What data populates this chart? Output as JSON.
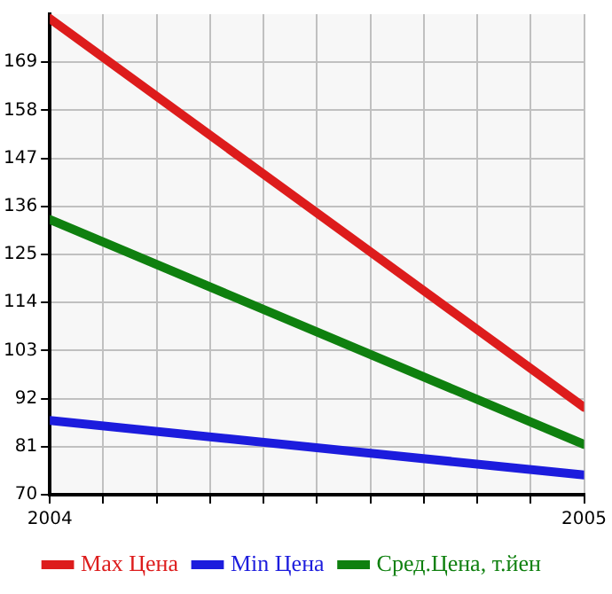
{
  "chart_data": {
    "type": "line",
    "x": [
      2004,
      2005
    ],
    "series": [
      {
        "name": "Max Цена",
        "color": "#dd1c1c",
        "values": [
          179,
          90
        ]
      },
      {
        "name": "Min Цена",
        "color": "#1c1cdd",
        "values": [
          87,
          74.5
        ]
      },
      {
        "name": "Сред.Цена, т.йен",
        "color": "#0f800f",
        "values": [
          133,
          81.5
        ]
      }
    ],
    "xlim": [
      2004,
      2005
    ],
    "xticks": [
      2004,
      {
        "value": 2004.1,
        "label": null
      },
      {
        "value": 2004.2,
        "label": null
      },
      {
        "value": 2004.3,
        "label": null
      },
      {
        "value": 2004.4,
        "label": null
      },
      {
        "value": 2004.5,
        "label": null
      },
      {
        "value": 2004.6,
        "label": null
      },
      {
        "value": 2004.7,
        "label": null
      },
      {
        "value": 2004.8,
        "label": null
      },
      {
        "value": 2004.9,
        "label": null
      },
      2005
    ],
    "ylim": [
      70,
      180
    ],
    "yticks": [
      70,
      81,
      92,
      103,
      114,
      125,
      136,
      147,
      158,
      169
    ],
    "grid": true,
    "legend": "bottom",
    "marker": "none",
    "line_style": "solid"
  }
}
